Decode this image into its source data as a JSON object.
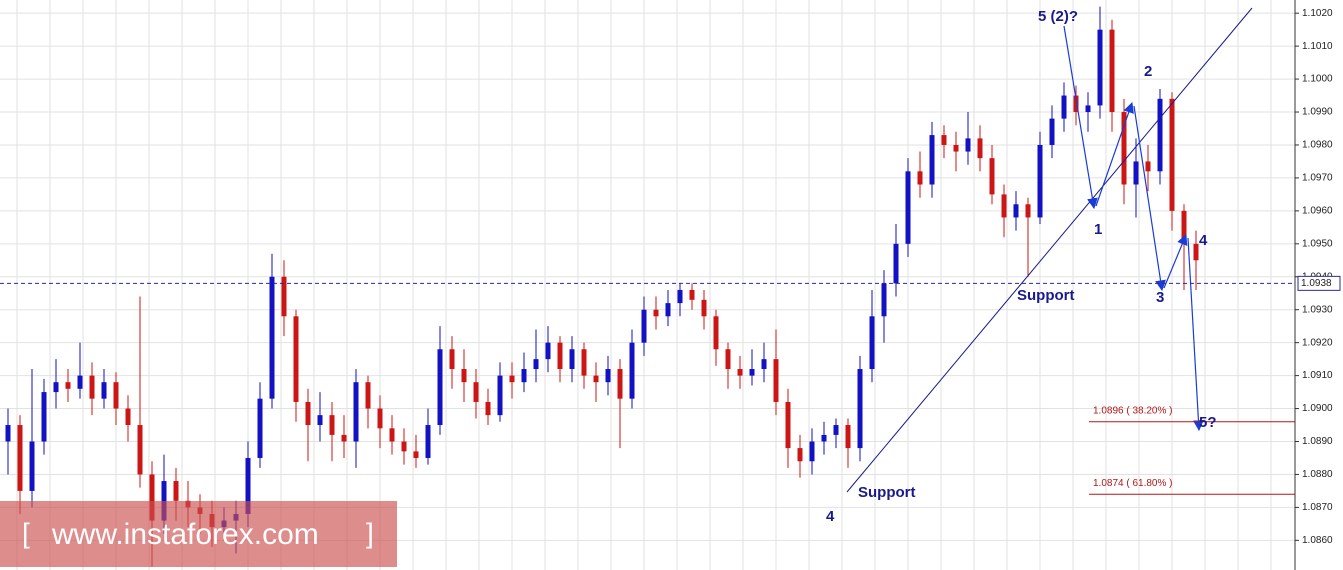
{
  "chart_data": {
    "type": "candlestick",
    "up_color": "#1212c4",
    "down_color": "#cc1616",
    "ylim": [
      1.0851,
      1.1024
    ],
    "yticks": [
      {
        "value": 1.086,
        "label": "1.0860"
      },
      {
        "value": 1.087,
        "label": "1.0870"
      },
      {
        "value": 1.088,
        "label": "1.0880"
      },
      {
        "value": 1.089,
        "label": "1.0890"
      },
      {
        "value": 1.09,
        "label": "1.0900"
      },
      {
        "value": 1.091,
        "label": "1.0910"
      },
      {
        "value": 1.092,
        "label": "1.0920"
      },
      {
        "value": 1.093,
        "label": "1.0930"
      },
      {
        "value": 1.094,
        "label": "1.0940"
      },
      {
        "value": 1.095,
        "label": "1.0950"
      },
      {
        "value": 1.096,
        "label": "1.0960"
      },
      {
        "value": 1.097,
        "label": "1.0970"
      },
      {
        "value": 1.098,
        "label": "1.0980"
      },
      {
        "value": 1.099,
        "label": "1.0990"
      },
      {
        "value": 1.1,
        "label": "1.1000"
      },
      {
        "value": 1.101,
        "label": "1.1010"
      },
      {
        "value": 1.102,
        "label": "1.1020"
      }
    ],
    "grid": true,
    "open": [
      1.089,
      1.0895,
      1.0875,
      1.089,
      1.0905,
      1.0908,
      1.0906,
      1.091,
      1.0903,
      1.0908,
      1.09,
      1.0895,
      1.088,
      1.0866,
      1.0878,
      1.0872,
      1.087,
      1.0868,
      1.0864,
      1.0866,
      1.0868,
      1.0885,
      1.0903,
      1.094,
      1.0928,
      1.0902,
      1.0895,
      1.0898,
      1.0892,
      1.089,
      1.0908,
      1.09,
      1.0894,
      1.089,
      1.0887,
      1.0885,
      1.0895,
      1.0918,
      1.0912,
      1.0908,
      1.0902,
      1.0898,
      1.091,
      1.0908,
      1.0912,
      1.0915,
      1.092,
      1.0912,
      1.0918,
      1.091,
      1.0908,
      1.0912,
      1.0903,
      1.092,
      1.093,
      1.0928,
      1.0932,
      1.0936,
      1.0933,
      1.0928,
      1.0918,
      1.0912,
      1.091,
      1.0912,
      1.0915,
      1.0902,
      1.0888,
      1.0884,
      1.089,
      1.0892,
      1.0895,
      1.0888,
      1.0912,
      1.0928,
      1.0938,
      1.095,
      1.0972,
      1.0968,
      1.0983,
      1.098,
      1.0978,
      1.0982,
      1.0976,
      1.0965,
      1.0958,
      1.0962,
      1.0958,
      1.098,
      1.0988,
      1.0995,
      1.099,
      1.0992,
      1.1015,
      1.099,
      1.0968,
      1.0975,
      1.0972,
      1.0994,
      1.096,
      1.095
    ],
    "high": [
      1.09,
      1.0898,
      1.0912,
      1.0909,
      1.0915,
      1.0912,
      1.092,
      1.0914,
      1.0912,
      1.0911,
      1.0904,
      1.0934,
      1.0884,
      1.0886,
      1.0882,
      1.0878,
      1.0874,
      1.0872,
      1.087,
      1.0872,
      1.089,
      1.0908,
      1.0947,
      1.0945,
      1.093,
      1.0906,
      1.0905,
      1.0902,
      1.0898,
      1.0912,
      1.091,
      1.0904,
      1.0898,
      1.0894,
      1.0892,
      1.09,
      1.0925,
      1.0922,
      1.0918,
      1.0912,
      1.0906,
      1.0914,
      1.0914,
      1.0917,
      1.0924,
      1.0925,
      1.0922,
      1.0922,
      1.092,
      1.0914,
      1.0916,
      1.0915,
      1.0924,
      1.0934,
      1.0934,
      1.0936,
      1.0938,
      1.0938,
      1.0936,
      1.093,
      1.092,
      1.0916,
      1.0918,
      1.092,
      1.0924,
      1.0906,
      1.0892,
      1.0894,
      1.0896,
      1.0897,
      1.0897,
      1.0916,
      1.0936,
      1.0942,
      1.0956,
      1.0976,
      1.0978,
      1.0987,
      1.0986,
      1.0984,
      1.099,
      1.0986,
      1.098,
      1.0968,
      1.0966,
      1.0964,
      1.0984,
      1.0992,
      1.0999,
      1.0998,
      1.0996,
      1.1022,
      1.1018,
      1.0994,
      1.0982,
      1.098,
      1.0997,
      1.0996,
      1.0962,
      1.0954
    ],
    "low": [
      1.088,
      1.0868,
      1.087,
      1.0886,
      1.09,
      1.0902,
      1.0903,
      1.0898,
      1.09,
      1.0895,
      1.089,
      1.0876,
      1.0852,
      1.0862,
      1.0866,
      1.0864,
      1.0862,
      1.0858,
      1.086,
      1.0856,
      1.0864,
      1.0882,
      1.09,
      1.0922,
      1.0896,
      1.0884,
      1.089,
      1.0884,
      1.0885,
      1.0882,
      1.0894,
      1.0888,
      1.0886,
      1.0883,
      1.0882,
      1.0883,
      1.0892,
      1.0906,
      1.0902,
      1.0897,
      1.0895,
      1.0896,
      1.0903,
      1.0905,
      1.0908,
      1.0911,
      1.0908,
      1.0908,
      1.0906,
      1.0902,
      1.0904,
      1.0888,
      1.09,
      1.0916,
      1.0924,
      1.0925,
      1.0928,
      1.093,
      1.0924,
      1.0913,
      1.0906,
      1.0906,
      1.0907,
      1.0908,
      1.0898,
      1.0882,
      1.0879,
      1.088,
      1.0886,
      1.0888,
      1.0882,
      1.0884,
      1.0908,
      1.092,
      1.0934,
      1.0946,
      1.0964,
      1.0964,
      1.0976,
      1.0972,
      1.0974,
      1.0972,
      1.0962,
      1.0952,
      1.0954,
      1.094,
      1.0956,
      1.0976,
      1.0984,
      1.0986,
      1.0984,
      1.0988,
      1.0984,
      1.0962,
      1.0958,
      1.0966,
      1.0968,
      1.0954,
      1.0936,
      1.0936
    ],
    "close": [
      1.0895,
      1.0875,
      1.089,
      1.0905,
      1.0908,
      1.0906,
      1.091,
      1.0903,
      1.0908,
      1.09,
      1.0895,
      1.088,
      1.0866,
      1.0878,
      1.0872,
      1.087,
      1.0868,
      1.0864,
      1.0866,
      1.0868,
      1.0885,
      1.0903,
      1.094,
      1.0928,
      1.0902,
      1.0895,
      1.0898,
      1.0892,
      1.089,
      1.0908,
      1.09,
      1.0894,
      1.089,
      1.0887,
      1.0885,
      1.0895,
      1.0918,
      1.0912,
      1.0908,
      1.0902,
      1.0898,
      1.091,
      1.0908,
      1.0912,
      1.0915,
      1.092,
      1.0912,
      1.0918,
      1.091,
      1.0908,
      1.0912,
      1.0903,
      1.092,
      1.093,
      1.0928,
      1.0932,
      1.0936,
      1.0933,
      1.0928,
      1.0918,
      1.0912,
      1.091,
      1.0912,
      1.0915,
      1.0902,
      1.0888,
      1.0884,
      1.089,
      1.0892,
      1.0895,
      1.0888,
      1.0912,
      1.0928,
      1.0938,
      1.095,
      1.0972,
      1.0968,
      1.0983,
      1.098,
      1.0978,
      1.0982,
      1.0976,
      1.0965,
      1.0958,
      1.0962,
      1.0958,
      1.098,
      1.0988,
      1.0995,
      1.099,
      1.0992,
      1.1015,
      1.099,
      1.0968,
      1.0975,
      1.0972,
      1.0994,
      1.096,
      1.095,
      1.0945
    ],
    "price_line": {
      "value": 1.0938,
      "label": "1.0938"
    },
    "fib_levels": [
      {
        "value": 1.0896,
        "label": "1.0896 ( 38.20% )"
      },
      {
        "value": 1.0874,
        "label": "1.0874 ( 61.80% )"
      }
    ],
    "annotations": [
      "5 (2)?",
      "2",
      "1",
      "Support",
      "3",
      "4",
      "5?",
      "Support",
      "4"
    ],
    "watermark": [
      "[",
      "www.instaforex.com",
      "]"
    ]
  }
}
